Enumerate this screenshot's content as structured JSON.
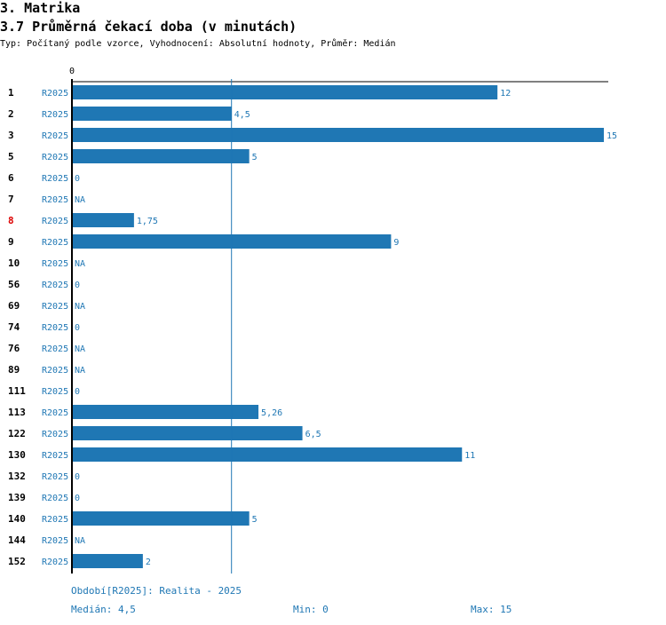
{
  "heading": "3. Matrika",
  "subheading": "3.7 Průměrná čekací doba (v minutách)",
  "description": "Typ: Počítaný podle vzorce, Vyhodnocení: Absolutní hodnoty, Průměr: Medián",
  "colors": {
    "bar": "#1f77b4",
    "label": "#1f77b4",
    "highlight": "#dd0000",
    "axis": "#000000"
  },
  "chart_data": {
    "type": "bar",
    "orientation": "horizontal",
    "x_tick_labels": [
      "0"
    ],
    "xlim": [
      0,
      15
    ],
    "median_line": 4.5,
    "series_name": "R2025",
    "rows": [
      {
        "id": "1",
        "series": "R2025",
        "value": 12,
        "label": "12"
      },
      {
        "id": "2",
        "series": "R2025",
        "value": 4.5,
        "label": "4,5"
      },
      {
        "id": "3",
        "series": "R2025",
        "value": 15,
        "label": "15"
      },
      {
        "id": "5",
        "series": "R2025",
        "value": 5,
        "label": "5"
      },
      {
        "id": "6",
        "series": "R2025",
        "value": 0,
        "label": "0"
      },
      {
        "id": "7",
        "series": "R2025",
        "value": null,
        "label": "NA"
      },
      {
        "id": "8",
        "series": "R2025",
        "value": 1.75,
        "label": "1,75",
        "highlight": true
      },
      {
        "id": "9",
        "series": "R2025",
        "value": 9,
        "label": "9"
      },
      {
        "id": "10",
        "series": "R2025",
        "value": null,
        "label": "NA"
      },
      {
        "id": "56",
        "series": "R2025",
        "value": 0,
        "label": "0"
      },
      {
        "id": "69",
        "series": "R2025",
        "value": null,
        "label": "NA"
      },
      {
        "id": "74",
        "series": "R2025",
        "value": 0,
        "label": "0"
      },
      {
        "id": "76",
        "series": "R2025",
        "value": null,
        "label": "NA"
      },
      {
        "id": "89",
        "series": "R2025",
        "value": null,
        "label": "NA"
      },
      {
        "id": "111",
        "series": "R2025",
        "value": 0,
        "label": "0"
      },
      {
        "id": "113",
        "series": "R2025",
        "value": 5.26,
        "label": "5,26"
      },
      {
        "id": "122",
        "series": "R2025",
        "value": 6.5,
        "label": "6,5"
      },
      {
        "id": "130",
        "series": "R2025",
        "value": 11,
        "label": "11"
      },
      {
        "id": "132",
        "series": "R2025",
        "value": 0,
        "label": "0"
      },
      {
        "id": "139",
        "series": "R2025",
        "value": 0,
        "label": "0"
      },
      {
        "id": "140",
        "series": "R2025",
        "value": 5,
        "label": "5"
      },
      {
        "id": "144",
        "series": "R2025",
        "value": null,
        "label": "NA"
      },
      {
        "id": "152",
        "series": "R2025",
        "value": 2,
        "label": "2"
      }
    ]
  },
  "footer": {
    "period": "Období[R2025]: Realita - 2025",
    "median": "Medián: 4,5",
    "min": "Min: 0",
    "max": "Max: 15"
  }
}
